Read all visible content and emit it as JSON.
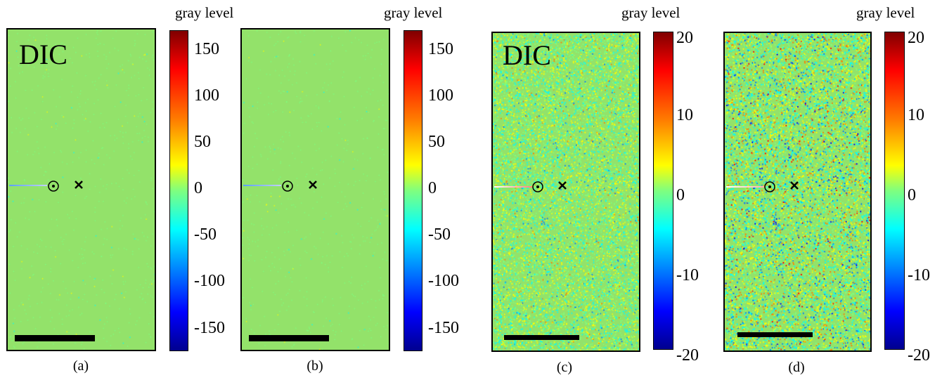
{
  "panels": [
    {
      "caption": "(a)",
      "map_label": "DIC",
      "colorbar_title": "gray level",
      "ticks": [
        "150",
        "100",
        "50",
        "0",
        "-50",
        "-100",
        "-150"
      ],
      "noise": "low"
    },
    {
      "caption": "(b)",
      "map_label": "",
      "colorbar_title": "gray level",
      "ticks": [
        "150",
        "100",
        "50",
        "0",
        "-50",
        "-100",
        "-150"
      ],
      "noise": "low"
    },
    {
      "caption": "(c)",
      "map_label": "DIC",
      "colorbar_title": "gray level",
      "ticks": [
        "20",
        "10",
        "0",
        "-10",
        "-20"
      ],
      "noise": "high"
    },
    {
      "caption": "(d)",
      "map_label": "",
      "colorbar_title": "gray level",
      "ticks": [
        "20",
        "10",
        "0",
        "-10",
        "-20"
      ],
      "noise": "very-high"
    }
  ],
  "colors": {
    "field_background": "#93e26a",
    "colormap": "jet"
  },
  "icons": {
    "crack_tip_marker": "circled-dot-icon",
    "reference_marker": "cross-icon"
  }
}
